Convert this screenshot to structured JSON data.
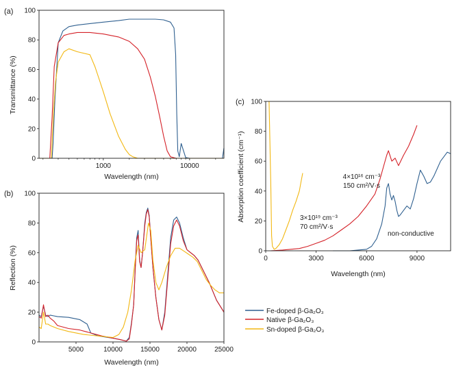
{
  "chart_data": [
    {
      "panel_label": "(a)",
      "type": "line",
      "xlabel": "Wavelength (nm)",
      "ylabel": "Transmittance (%)",
      "x_scale": "log",
      "xlim": [
        180,
        25000
      ],
      "ylim": [
        0,
        100
      ],
      "x_ticks": [
        "1000",
        "10000"
      ],
      "y_ticks": [
        "0",
        "20",
        "40",
        "60",
        "80",
        "100"
      ],
      "grid": false,
      "series": [
        {
          "name": "Fe-doped β-Ga2O3",
          "color": "#2e5f8f",
          "x": [
            180,
            255,
            262,
            275,
            300,
            340,
            400,
            500,
            700,
            1000,
            1500,
            2000,
            2500,
            3000,
            4000,
            5000,
            6000,
            6600,
            6900,
            7100,
            7300,
            7600,
            8000,
            8500,
            9000,
            10000,
            15000,
            20000,
            24000,
            25000
          ],
          "y": [
            0,
            0,
            10,
            40,
            78,
            86,
            89,
            90,
            91,
            92,
            93,
            94,
            94,
            94,
            94,
            93.5,
            92,
            88,
            70,
            30,
            5,
            1,
            10,
            5,
            0.5,
            0,
            0,
            0,
            0,
            7
          ]
        },
        {
          "name": "Native β-Ga2O3",
          "color": "#d42027",
          "x": [
            180,
            240,
            255,
            270,
            300,
            350,
            400,
            500,
            700,
            1000,
            1500,
            2000,
            2500,
            3000,
            3500,
            4000,
            4500,
            5000,
            5500,
            6000,
            7000,
            25000
          ],
          "y": [
            0,
            0,
            28,
            62,
            78,
            83,
            84,
            85,
            85,
            84,
            82,
            79,
            74,
            67,
            55,
            42,
            28,
            15,
            5,
            1,
            0,
            0
          ]
        },
        {
          "name": "Sn-doped β-Ga2O3",
          "color": "#f2b710",
          "x": [
            180,
            250,
            265,
            280,
            300,
            350,
            400,
            500,
            700,
            800,
            900,
            1000,
            1200,
            1500,
            1800,
            2000,
            2200,
            2500,
            25000
          ],
          "y": [
            0,
            0,
            32,
            52,
            65,
            72,
            74,
            72,
            70,
            62,
            53,
            45,
            30,
            15,
            6,
            2.5,
            1,
            0,
            0
          ]
        }
      ]
    },
    {
      "panel_label": "(b)",
      "type": "line",
      "xlabel": "Wavelength (nm)",
      "ylabel": "Reflection (%)",
      "xlim": [
        0,
        25000
      ],
      "ylim": [
        0,
        100
      ],
      "x_ticks": [
        "5000",
        "10000",
        "15000",
        "20000",
        "25000"
      ],
      "y_ticks": [
        "0",
        "20",
        "40",
        "60",
        "80",
        "100"
      ],
      "grid": false,
      "series": [
        {
          "name": "Fe-doped β-Ga2O3",
          "color": "#2e5f8f",
          "x": [
            0,
            300,
            600,
            900,
            1200,
            1500,
            2000,
            2500,
            4000,
            5500,
            6500,
            7000,
            8000,
            10000,
            11000,
            11800,
            12200,
            12500,
            12800,
            13000,
            13200,
            13400,
            13600,
            13800,
            14000,
            14300,
            14500,
            14700,
            14900,
            15100,
            15400,
            15800,
            16200,
            16600,
            17000,
            17400,
            17800,
            18200,
            18600,
            19000,
            19500,
            20000,
            20500,
            21000,
            21500,
            22000,
            23000,
            24000,
            25000
          ],
          "y": [
            18,
            17,
            24,
            18,
            17,
            18,
            17.5,
            17,
            16.5,
            15,
            12,
            6,
            4,
            2.5,
            1.5,
            0.5,
            3,
            13,
            25,
            50,
            70,
            75,
            55,
            50,
            60,
            80,
            87,
            90,
            85,
            70,
            50,
            30,
            15,
            8,
            20,
            45,
            70,
            82,
            84,
            80,
            70,
            62,
            60,
            58,
            55,
            50,
            40,
            28,
            20
          ]
        },
        {
          "name": "Native β-Ga2O3",
          "color": "#d42027",
          "x": [
            0,
            300,
            600,
            900,
            1200,
            1500,
            2000,
            2500,
            4000,
            5500,
            7000,
            8500,
            10000,
            11000,
            11800,
            12200,
            12500,
            12800,
            13000,
            13200,
            13400,
            13600,
            13800,
            14000,
            14300,
            14500,
            14700,
            14900,
            15100,
            15400,
            15800,
            16200,
            16600,
            17000,
            17400,
            17800,
            18200,
            18600,
            19000,
            19500,
            20000,
            20500,
            21000,
            21500,
            22000,
            23000,
            24000,
            25000
          ],
          "y": [
            17,
            16,
            25,
            17,
            18,
            16,
            14,
            11,
            9,
            8,
            6,
            4,
            2.5,
            1.5,
            0.5,
            2,
            12,
            25,
            48,
            68,
            72,
            54,
            50,
            60,
            78,
            86,
            89,
            84,
            70,
            50,
            30,
            15,
            8,
            18,
            42,
            66,
            78,
            82,
            78,
            68,
            62,
            60,
            58,
            55,
            50,
            40,
            28,
            20
          ]
        },
        {
          "name": "Sn-doped β-Ga2O3",
          "color": "#f2b710",
          "x": [
            0,
            300,
            600,
            900,
            1200,
            1500,
            2000,
            2500,
            4000,
            6000,
            8000,
            10000,
            10800,
            11400,
            12000,
            12500,
            13000,
            13400,
            13800,
            14300,
            14800,
            15100,
            15400,
            15800,
            16200,
            16600,
            17200,
            17800,
            18400,
            19000,
            19600,
            20200,
            20800,
            21400,
            22000,
            22600,
            23200,
            23800,
            24400,
            25000
          ],
          "y": [
            10,
            9,
            20,
            12,
            12,
            11,
            10,
            9,
            7,
            5,
            4,
            3,
            5,
            10,
            20,
            35,
            55,
            65,
            60,
            62,
            80,
            75,
            55,
            40,
            35,
            40,
            50,
            58,
            63,
            63,
            61,
            59,
            57,
            54,
            48,
            42,
            38,
            35,
            33,
            33
          ]
        }
      ]
    },
    {
      "panel_label": "(c)",
      "type": "line",
      "xlabel": "Wavelength (nm)",
      "ylabel": "Absorption coefficient (cm⁻¹)",
      "xlim": [
        0,
        11000
      ],
      "ylim": [
        0,
        100
      ],
      "x_ticks": [
        "0",
        "3000",
        "6000",
        "9000"
      ],
      "y_ticks": [
        "0",
        "20",
        "40",
        "60",
        "80",
        "100"
      ],
      "grid": false,
      "series": [
        {
          "name": "non-conductive",
          "color": "#2e5f8f",
          "x": [
            4000,
            5000,
            5500,
            6000,
            6300,
            6600,
            6900,
            7100,
            7200,
            7300,
            7400,
            7500,
            7600,
            7700,
            7800,
            7900,
            8000,
            8200,
            8400,
            8600,
            8800,
            9000,
            9200,
            9400,
            9600,
            9800,
            10000,
            10200,
            10400,
            10600,
            10800,
            11000
          ],
          "y": [
            0,
            0,
            0.5,
            1,
            3,
            8,
            18,
            30,
            42,
            45,
            38,
            34,
            37,
            33,
            27,
            23,
            24,
            27,
            30,
            28,
            35,
            45,
            54,
            50,
            45,
            46,
            50,
            55,
            60,
            63,
            66,
            65
          ]
        },
        {
          "name": "Native β-Ga2O3",
          "color": "#d42027",
          "x": [
            300,
            1000,
            1500,
            2000,
            2500,
            3000,
            3500,
            4000,
            4500,
            5000,
            5500,
            6000,
            6500,
            6800,
            7000,
            7200,
            7300,
            7500,
            7700,
            7900,
            8200,
            8500,
            8800,
            9000
          ],
          "y": [
            0,
            0.5,
            1,
            1.5,
            3,
            5,
            7,
            10,
            14,
            18,
            23,
            30,
            38,
            48,
            56,
            64,
            67,
            60,
            62,
            57,
            64,
            70,
            78,
            84
          ]
        },
        {
          "name": "Sn-doped β-Ga2O3",
          "color": "#f2b710",
          "x": [
            200,
            300,
            350,
            400,
            500,
            600,
            800,
            1000,
            1200,
            1400,
            1600,
            1800,
            2000,
            2100,
            2200
          ],
          "y": [
            100,
            45,
            10,
            3,
            1,
            1.5,
            4,
            8,
            14,
            20,
            27,
            33,
            40,
            46,
            52
          ]
        }
      ],
      "annotations": [
        {
          "text": "4×10¹⁶ cm⁻³",
          "color": "#d42027"
        },
        {
          "text": "150 cm²/V·s",
          "color": "#d42027"
        },
        {
          "text": "3×10¹⁹ cm⁻³",
          "color": "#f2b710"
        },
        {
          "text": "70 cm²/V·s",
          "color": "#f2b710"
        },
        {
          "text": "non-conductive",
          "color": "#2e5f8f"
        }
      ]
    }
  ],
  "legend": {
    "placement": "bottom-right",
    "entries": [
      {
        "label": "Fe-doped β-Ga₂O₃",
        "color": "#2e5f8f"
      },
      {
        "label": "Native β-Ga₂O₃",
        "color": "#d42027"
      },
      {
        "label": "Sn-doped β-Ga₂O₃",
        "color": "#f2b710"
      }
    ]
  }
}
